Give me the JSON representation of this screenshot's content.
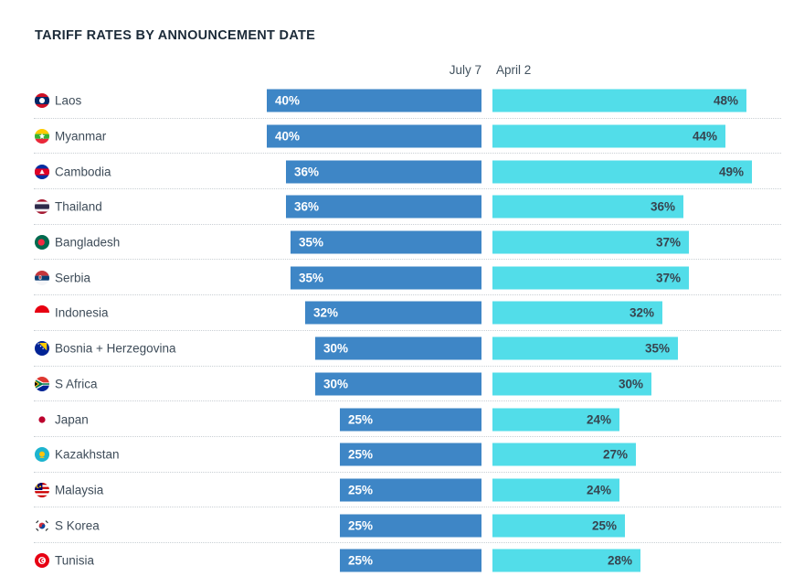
{
  "title": "TARIFF RATES BY ANNOUNCEMENT DATE",
  "columns": {
    "july7_label": "July 7",
    "april2_label": "April 2"
  },
  "colors": {
    "july7_bar": "#3e86c6",
    "april2_bar": "#52dde9",
    "title_text": "#1c2b39",
    "country_text": "#3e4c59",
    "july7_value_text": "#ffffff",
    "april2_value_text": "#37444f",
    "separator": "#c9cfd4"
  },
  "chart_data": {
    "type": "bar",
    "orientation": "horizontal",
    "title": "TARIFF RATES BY ANNOUNCEMENT DATE",
    "value_unit": "percent",
    "legend_position": "top",
    "grid": "dotted-row-separators",
    "categories": [
      "Laos",
      "Myanmar",
      "Cambodia",
      "Thailand",
      "Bangladesh",
      "Serbia",
      "Indonesia",
      "Bosnia + Herzegovina",
      "S Africa",
      "Japan",
      "Kazakhstan",
      "Malaysia",
      "S Korea",
      "Tunisia"
    ],
    "series": [
      {
        "name": "July 7",
        "values": [
          40,
          40,
          36,
          36,
          35,
          35,
          32,
          30,
          30,
          25,
          25,
          25,
          25,
          25
        ]
      },
      {
        "name": "April 2",
        "values": [
          48,
          44,
          49,
          36,
          37,
          37,
          32,
          35,
          30,
          24,
          27,
          24,
          25,
          28
        ]
      }
    ],
    "rows": [
      {
        "country": "Laos",
        "flag": "laos-flag-icon",
        "july7": 40,
        "april2": 48,
        "july7_label": "40%",
        "april2_label": "48%"
      },
      {
        "country": "Myanmar",
        "flag": "myanmar-flag-icon",
        "july7": 40,
        "april2": 44,
        "july7_label": "40%",
        "april2_label": "44%"
      },
      {
        "country": "Cambodia",
        "flag": "cambodia-flag-icon",
        "july7": 36,
        "april2": 49,
        "july7_label": "36%",
        "april2_label": "49%"
      },
      {
        "country": "Thailand",
        "flag": "thailand-flag-icon",
        "july7": 36,
        "april2": 36,
        "july7_label": "36%",
        "april2_label": "36%"
      },
      {
        "country": "Bangladesh",
        "flag": "bangladesh-flag-icon",
        "july7": 35,
        "april2": 37,
        "july7_label": "35%",
        "april2_label": "37%"
      },
      {
        "country": "Serbia",
        "flag": "serbia-flag-icon",
        "july7": 35,
        "april2": 37,
        "july7_label": "35%",
        "april2_label": "37%"
      },
      {
        "country": "Indonesia",
        "flag": "indonesia-flag-icon",
        "july7": 32,
        "april2": 32,
        "july7_label": "32%",
        "april2_label": "32%"
      },
      {
        "country": "Bosnia + Herzegovina",
        "flag": "bosnia-flag-icon",
        "july7": 30,
        "april2": 35,
        "july7_label": "30%",
        "april2_label": "35%"
      },
      {
        "country": "S Africa",
        "flag": "s-africa-flag-icon",
        "july7": 30,
        "april2": 30,
        "july7_label": "30%",
        "april2_label": "30%"
      },
      {
        "country": "Japan",
        "flag": "japan-flag-icon",
        "july7": 25,
        "april2": 24,
        "july7_label": "25%",
        "april2_label": "24%"
      },
      {
        "country": "Kazakhstan",
        "flag": "kazakhstan-flag-icon",
        "july7": 25,
        "april2": 27,
        "july7_label": "25%",
        "april2_label": "27%"
      },
      {
        "country": "Malaysia",
        "flag": "malaysia-flag-icon",
        "july7": 25,
        "april2": 24,
        "july7_label": "25%",
        "april2_label": "24%"
      },
      {
        "country": "S Korea",
        "flag": "s-korea-flag-icon",
        "july7": 25,
        "april2": 25,
        "july7_label": "25%",
        "april2_label": "25%"
      },
      {
        "country": "Tunisia",
        "flag": "tunisia-flag-icon",
        "july7": 25,
        "april2": 28,
        "july7_label": "25%",
        "april2_label": "28%"
      }
    ]
  }
}
